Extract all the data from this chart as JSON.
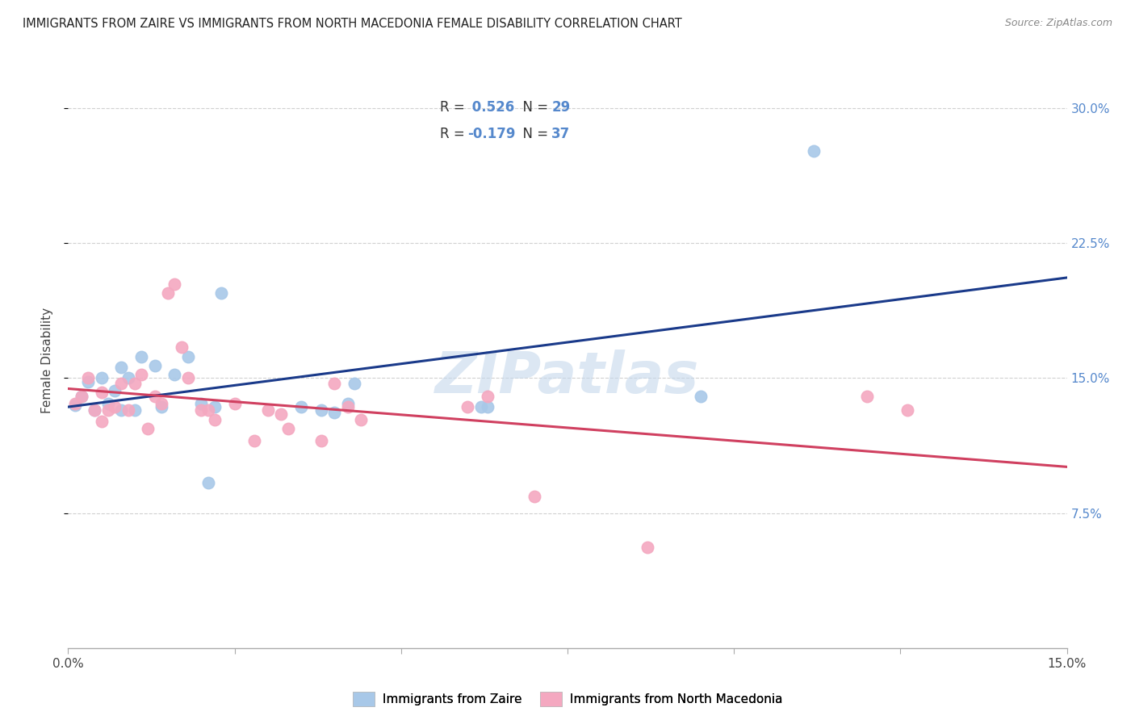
{
  "title": "IMMIGRANTS FROM ZAIRE VS IMMIGRANTS FROM NORTH MACEDONIA FEMALE DISABILITY CORRELATION CHART",
  "source": "Source: ZipAtlas.com",
  "ylabel": "Female Disability",
  "xlim": [
    0.0,
    0.15
  ],
  "ylim": [
    0.0,
    0.32
  ],
  "yticks": [
    0.075,
    0.15,
    0.225,
    0.3
  ],
  "ytick_labels": [
    "7.5%",
    "15.0%",
    "22.5%",
    "30.0%"
  ],
  "xticks": [
    0.0,
    0.025,
    0.05,
    0.075,
    0.1,
    0.125,
    0.15
  ],
  "xtick_labels": [
    "0.0%",
    "",
    "",
    "",
    "",
    "",
    "15.0%"
  ],
  "r_zaire": 0.526,
  "n_zaire": 29,
  "r_macedonia": -0.179,
  "n_macedonia": 37,
  "color_zaire": "#a8c8e8",
  "color_macedonia": "#f4a8c0",
  "line_color_zaire": "#1a3a8a",
  "line_color_macedonia": "#d04060",
  "legend_label_zaire": "Immigrants from Zaire",
  "legend_label_macedonia": "Immigrants from North Macedonia",
  "watermark": "ZIPatlas",
  "background_color": "#ffffff",
  "grid_color": "#d0d0d0",
  "tick_color": "#5588cc",
  "title_color": "#222222",
  "source_color": "#888888",
  "zaire_x": [
    0.001,
    0.002,
    0.003,
    0.004,
    0.005,
    0.006,
    0.007,
    0.008,
    0.008,
    0.009,
    0.01,
    0.011,
    0.013,
    0.014,
    0.016,
    0.018,
    0.02,
    0.021,
    0.022,
    0.023,
    0.035,
    0.038,
    0.04,
    0.042,
    0.043,
    0.062,
    0.063,
    0.095,
    0.112
  ],
  "zaire_y": [
    0.135,
    0.14,
    0.148,
    0.132,
    0.15,
    0.136,
    0.143,
    0.156,
    0.132,
    0.15,
    0.132,
    0.162,
    0.157,
    0.134,
    0.152,
    0.162,
    0.136,
    0.092,
    0.134,
    0.197,
    0.134,
    0.132,
    0.131,
    0.136,
    0.147,
    0.134,
    0.134,
    0.14,
    0.276
  ],
  "macedonia_x": [
    0.001,
    0.002,
    0.003,
    0.004,
    0.005,
    0.005,
    0.006,
    0.007,
    0.008,
    0.009,
    0.01,
    0.011,
    0.012,
    0.013,
    0.014,
    0.015,
    0.016,
    0.017,
    0.018,
    0.02,
    0.021,
    0.022,
    0.025,
    0.028,
    0.03,
    0.032,
    0.033,
    0.038,
    0.04,
    0.042,
    0.044,
    0.06,
    0.063,
    0.07,
    0.087,
    0.12,
    0.126
  ],
  "macedonia_y": [
    0.136,
    0.14,
    0.15,
    0.132,
    0.142,
    0.126,
    0.132,
    0.134,
    0.147,
    0.132,
    0.147,
    0.152,
    0.122,
    0.14,
    0.136,
    0.197,
    0.202,
    0.167,
    0.15,
    0.132,
    0.132,
    0.127,
    0.136,
    0.115,
    0.132,
    0.13,
    0.122,
    0.115,
    0.147,
    0.134,
    0.127,
    0.134,
    0.14,
    0.084,
    0.056,
    0.14,
    0.132
  ]
}
